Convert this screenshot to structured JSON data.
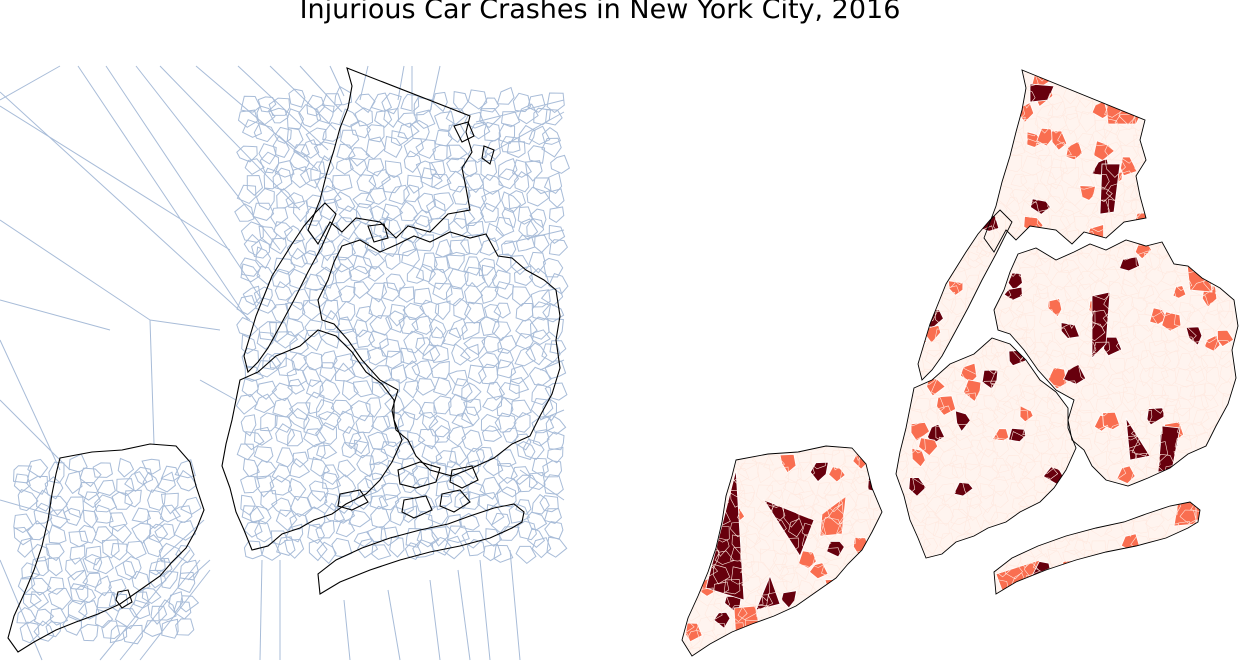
{
  "figure": {
    "title": "Injurious Car Crashes in New York City, 2016"
  },
  "colors": {
    "background": "#ffffff",
    "voronoi_edge": "#a8bcd8",
    "boundary": "#000000",
    "heat_low": "#fff4ef",
    "heat_mid": "#f96e50",
    "heat_high": "#67000d",
    "cell_edge": "#ffffff"
  },
  "panels": [
    {
      "name": "voronoi-tessellation",
      "type": "voronoi diagram over NYC borough outlines"
    },
    {
      "name": "crash-choropleth",
      "type": "choropleth of Voronoi cells, white-to-dark-red scale"
    }
  ]
}
